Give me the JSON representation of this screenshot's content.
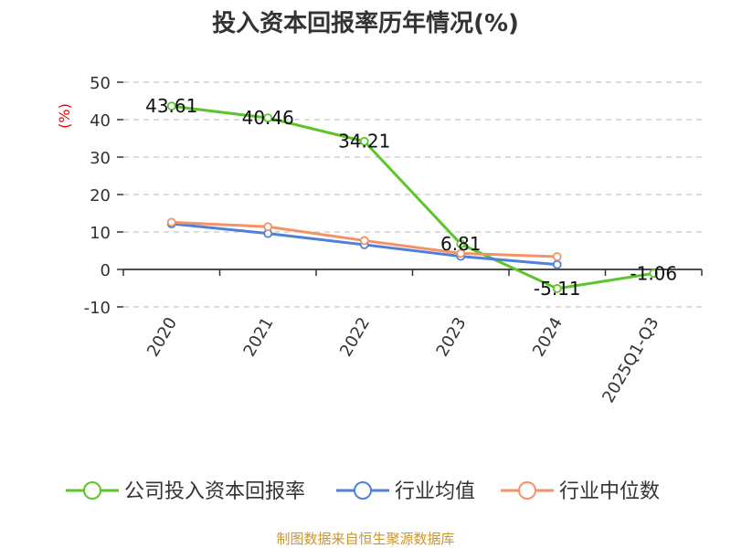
{
  "chart_data": {
    "type": "line",
    "title": "投入资本回报率历年情况(%)",
    "ylabel": "(%)",
    "xlabel": "",
    "categories": [
      "2020",
      "2021",
      "2022",
      "2023",
      "2024",
      "2025Q1-Q3"
    ],
    "ylim": [
      -10,
      50
    ],
    "yticks": [
      50,
      40,
      30,
      20,
      10,
      0,
      -10
    ],
    "grid": true,
    "legend_position": "bottom",
    "series": [
      {
        "name": "公司投入资本回报率",
        "color": "#5cc529",
        "values": [
          43.61,
          40.46,
          34.21,
          6.81,
          -5.11,
          -1.06
        ],
        "labels": [
          "43.61",
          "40.46",
          "34.21",
          "6.81",
          "-5.11",
          "-1.06"
        ]
      },
      {
        "name": "行业均值",
        "color": "#4f7fdb",
        "values": [
          12.2,
          9.6,
          6.6,
          3.5,
          1.3,
          null
        ]
      },
      {
        "name": "行业中位数",
        "color": "#f39264",
        "values": [
          12.6,
          11.4,
          7.7,
          4.3,
          3.4,
          null
        ]
      }
    ],
    "source": "制图数据来自恒生聚源数据库"
  }
}
